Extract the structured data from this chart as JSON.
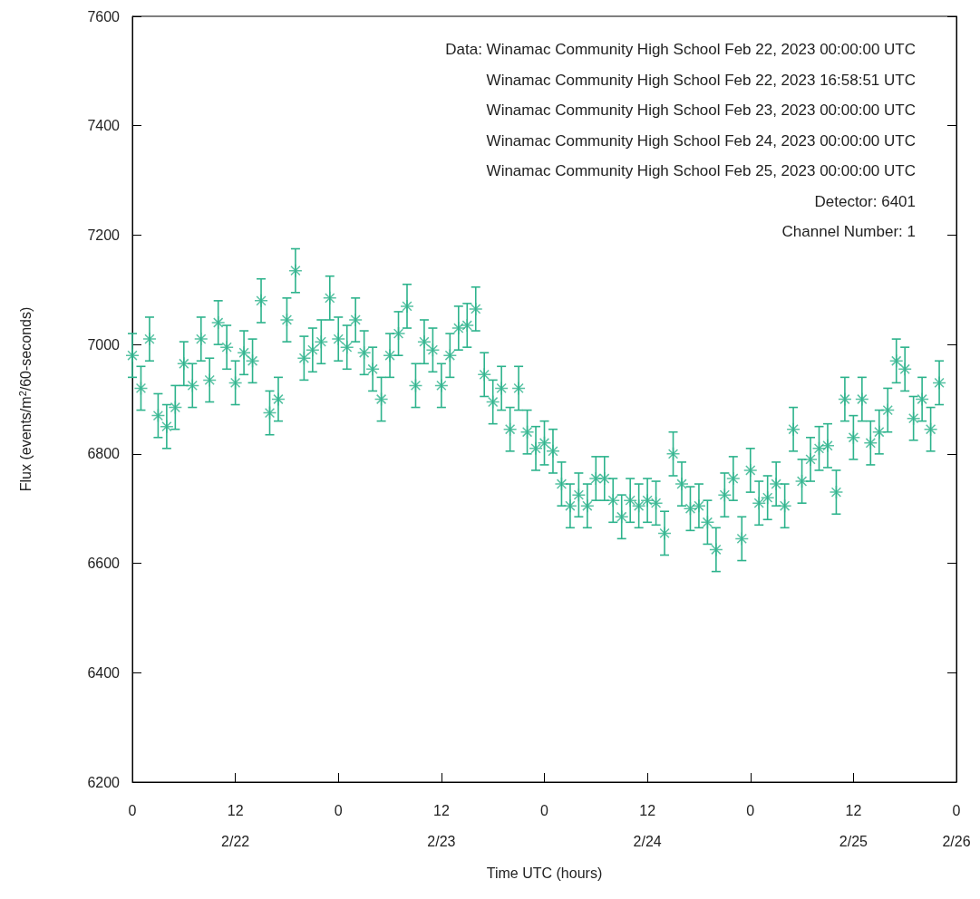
{
  "chart_data": {
    "type": "scatter",
    "xlabel": "Time UTC (hours)",
    "ylabel": "Flux (events/m$^{2}$/60-seconds)",
    "annotations": [
      "Data: Winamac Community High School Feb 22, 2023 00:00:00 UTC",
      "Winamac Community High School Feb 22, 2023 16:58:51 UTC",
      "Winamac Community High School Feb 23, 2023 00:00:00 UTC",
      "Winamac Community High School Feb 24, 2023 00:00:00 UTC",
      "Winamac Community High School Feb 25, 2023 00:00:00 UTC",
      "Detector: 6401",
      "Channel Number: 1"
    ],
    "x": [
      "2023-02-22T00:00",
      "2023-02-22T01:00",
      "2023-02-22T02:00",
      "2023-02-22T03:00",
      "2023-02-22T04:00",
      "2023-02-22T05:00",
      "2023-02-22T06:00",
      "2023-02-22T07:00",
      "2023-02-22T08:00",
      "2023-02-22T09:00",
      "2023-02-22T10:00",
      "2023-02-22T11:00",
      "2023-02-22T12:00",
      "2023-02-22T13:00",
      "2023-02-22T14:00",
      "2023-02-22T15:00",
      "2023-02-22T16:00",
      "2023-02-22T17:00",
      "2023-02-22T18:00",
      "2023-02-22T19:00",
      "2023-02-22T20:00",
      "2023-02-22T21:00",
      "2023-02-22T22:00",
      "2023-02-22T23:00",
      "2023-02-23T00:00",
      "2023-02-23T01:00",
      "2023-02-23T02:00",
      "2023-02-23T03:00",
      "2023-02-23T04:00",
      "2023-02-23T05:00",
      "2023-02-23T06:00",
      "2023-02-23T07:00",
      "2023-02-23T08:00",
      "2023-02-23T09:00",
      "2023-02-23T10:00",
      "2023-02-23T11:00",
      "2023-02-23T12:00",
      "2023-02-23T13:00",
      "2023-02-23T14:00",
      "2023-02-23T15:00",
      "2023-02-23T16:00",
      "2023-02-23T17:00",
      "2023-02-23T18:00",
      "2023-02-23T19:00",
      "2023-02-23T20:00",
      "2023-02-23T21:00",
      "2023-02-23T22:00",
      "2023-02-23T23:00",
      "2023-02-24T00:00",
      "2023-02-24T01:00",
      "2023-02-24T02:00",
      "2023-02-24T03:00",
      "2023-02-24T04:00",
      "2023-02-24T05:00",
      "2023-02-24T06:00",
      "2023-02-24T07:00",
      "2023-02-24T08:00",
      "2023-02-24T09:00",
      "2023-02-24T10:00",
      "2023-02-24T11:00",
      "2023-02-24T12:00",
      "2023-02-24T13:00",
      "2023-02-24T14:00",
      "2023-02-24T15:00",
      "2023-02-24T16:00",
      "2023-02-24T17:00",
      "2023-02-24T18:00",
      "2023-02-24T19:00",
      "2023-02-24T20:00",
      "2023-02-24T21:00",
      "2023-02-24T22:00",
      "2023-02-24T23:00",
      "2023-02-25T00:00",
      "2023-02-25T01:00",
      "2023-02-25T02:00",
      "2023-02-25T03:00",
      "2023-02-25T04:00",
      "2023-02-25T05:00",
      "2023-02-25T06:00",
      "2023-02-25T07:00",
      "2023-02-25T08:00",
      "2023-02-25T09:00",
      "2023-02-25T10:00",
      "2023-02-25T11:00",
      "2023-02-25T12:00",
      "2023-02-25T13:00",
      "2023-02-25T14:00",
      "2023-02-25T15:00",
      "2023-02-25T16:00",
      "2023-02-25T17:00",
      "2023-02-25T18:00",
      "2023-02-25T19:00",
      "2023-02-25T20:00",
      "2023-02-25T21:00",
      "2023-02-25T22:00"
    ],
    "series": [
      {
        "color": "#2db38c",
        "values": [
          6980,
          6920,
          7010,
          6870,
          6850,
          6885,
          6965,
          6925,
          7010,
          6935,
          7040,
          6995,
          6930,
          6985,
          6970,
          7080,
          6875,
          6900,
          7045,
          7135,
          6975,
          6990,
          7005,
          7085,
          7010,
          6995,
          7045,
          6985,
          6955,
          6900,
          6980,
          7020,
          7070,
          6925,
          7005,
          6990,
          6925,
          6980,
          7030,
          7035,
          7065,
          6945,
          6895,
          6920,
          6845,
          6920,
          6840,
          6810,
          6820,
          6805,
          6745,
          6705,
          6725,
          6705,
          6755,
          6755,
          6715,
          6685,
          6715,
          6705,
          6715,
          6710,
          6655,
          6800,
          6745,
          6700,
          6705,
          6675,
          6625,
          6725,
          6755,
          6645,
          6770,
          6710,
          6720,
          6745,
          6705,
          6845,
          6750,
          6790,
          6810,
          6815,
          6730,
          6900,
          6830,
          6900,
          6820,
          6840,
          6880,
          6970,
          6955,
          6865,
          6900,
          6845,
          6930
        ],
        "errors": [
          40,
          40,
          40,
          40,
          40,
          40,
          40,
          40,
          40,
          40,
          40,
          40,
          40,
          40,
          40,
          40,
          40,
          40,
          40,
          40,
          40,
          40,
          40,
          40,
          40,
          40,
          40,
          40,
          40,
          40,
          40,
          40,
          40,
          40,
          40,
          40,
          40,
          40,
          40,
          40,
          40,
          40,
          40,
          40,
          40,
          40,
          40,
          40,
          40,
          40,
          40,
          40,
          40,
          40,
          40,
          40,
          40,
          40,
          40,
          40,
          40,
          40,
          40,
          40,
          40,
          40,
          40,
          40,
          40,
          40,
          40,
          40,
          40,
          40,
          40,
          40,
          40,
          40,
          40,
          40,
          40,
          40,
          40,
          40,
          40,
          40,
          40,
          40,
          40,
          40,
          40,
          40,
          40,
          40,
          40
        ]
      }
    ],
    "marker": "cross",
    "xlim": [
      "2023-02-22T00:00",
      "2023-02-26T00:00"
    ],
    "xticks": [
      {
        "value": "2023-02-22T00:00",
        "label": "0"
      },
      {
        "value": "2023-02-22T12:00",
        "label": "12\n2/22"
      },
      {
        "value": "2023-02-23T00:00",
        "label": "0"
      },
      {
        "value": "2023-02-23T12:00",
        "label": "12\n2/23"
      },
      {
        "value": "2023-02-24T00:00",
        "label": "0"
      },
      {
        "value": "2023-02-24T12:00",
        "label": "12\n2/24"
      },
      {
        "value": "2023-02-25T00:00",
        "label": "0"
      },
      {
        "value": "2023-02-25T12:00",
        "label": "12\n2/25"
      },
      {
        "value": "2023-02-26T00:00",
        "label": "0\n2/26"
      }
    ],
    "ylim": [
      6200,
      7600
    ],
    "yticks": [
      6200,
      6400,
      6600,
      6800,
      7000,
      7200,
      7400,
      7600
    ],
    "grid": false
  }
}
